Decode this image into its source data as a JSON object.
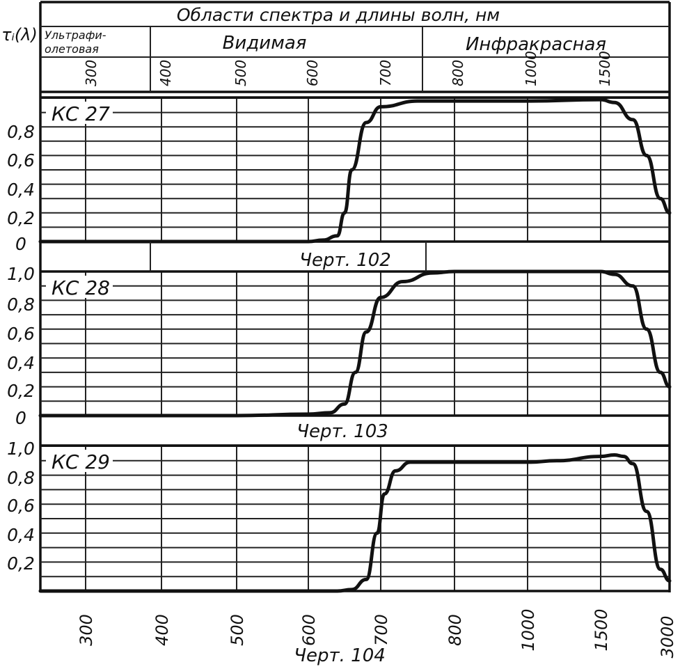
{
  "header": {
    "title": "Области спектра и длины волн,  нм",
    "y_symbol": "τᵢ(λ)",
    "regions": [
      {
        "name": "Ультрафи-",
        "name2": "олетовая"
      },
      {
        "name": "Видимая"
      },
      {
        "name": "Инфракрасная"
      }
    ],
    "tick_labels": [
      "300",
      "400",
      "500",
      "600",
      "700",
      "800",
      "1000",
      "1500"
    ]
  },
  "captions": [
    "Черт. 102",
    "Черт. 103",
    "Черт. 104"
  ],
  "x_tick_labels": [
    "300",
    "400",
    "500",
    "600",
    "700",
    "800",
    "1000",
    "1500",
    "3000"
  ],
  "chart_data": [
    {
      "type": "line",
      "title": "КС 27",
      "caption": "Черт. 102",
      "x_categories": [
        "300",
        "400",
        "500",
        "600",
        "700",
        "800",
        "1000",
        "1500",
        "3000"
      ],
      "yticks": [
        "0",
        "0,2",
        "0,4",
        "0,6",
        "0,8"
      ],
      "ylim": [
        0,
        1.0
      ],
      "series": [
        {
          "x": [
            250,
            300,
            400,
            500,
            600,
            620,
            640,
            650,
            660,
            680,
            700,
            750,
            800,
            1000,
            1500,
            1800,
            2200,
            2500,
            2800,
            3000
          ],
          "y": [
            0.0,
            0.0,
            0.0,
            0.0,
            0.0,
            0.01,
            0.04,
            0.2,
            0.5,
            0.83,
            0.94,
            0.98,
            0.98,
            0.98,
            0.99,
            0.97,
            0.85,
            0.6,
            0.3,
            0.2
          ]
        }
      ]
    },
    {
      "type": "line",
      "title": "КС 28",
      "caption": "Черт. 103",
      "x_categories": [
        "300",
        "400",
        "500",
        "600",
        "700",
        "800",
        "1000",
        "1500",
        "3000"
      ],
      "yticks": [
        "0",
        "0,2",
        "0,4",
        "0,6",
        "0,8",
        "1,0"
      ],
      "ylim": [
        0,
        1.0
      ],
      "series": [
        {
          "x": [
            250,
            300,
            400,
            500,
            600,
            630,
            650,
            665,
            680,
            700,
            730,
            770,
            800,
            1000,
            1500,
            1800,
            2200,
            2500,
            2800,
            3000
          ],
          "y": [
            0.0,
            0.0,
            0.0,
            0.0,
            0.01,
            0.02,
            0.08,
            0.3,
            0.58,
            0.82,
            0.93,
            0.99,
            1.0,
            1.0,
            1.0,
            0.98,
            0.9,
            0.6,
            0.3,
            0.2
          ]
        }
      ]
    },
    {
      "type": "line",
      "title": "КС 29",
      "caption": "Черт. 104",
      "x_categories": [
        "300",
        "400",
        "500",
        "600",
        "700",
        "800",
        "1000",
        "1500",
        "3000"
      ],
      "yticks": [
        "0,2",
        "0,4",
        "0,6",
        "0,8",
        "1,0"
      ],
      "ylim": [
        0,
        1.0
      ],
      "series": [
        {
          "x": [
            250,
            300,
            400,
            500,
            600,
            640,
            660,
            680,
            695,
            705,
            720,
            740,
            800,
            1000,
            1200,
            1500,
            1800,
            2000,
            2200,
            2500,
            2800,
            3000
          ],
          "y": [
            0.0,
            0.0,
            0.0,
            0.0,
            0.0,
            0.0,
            0.01,
            0.08,
            0.4,
            0.67,
            0.83,
            0.89,
            0.89,
            0.89,
            0.9,
            0.93,
            0.94,
            0.93,
            0.88,
            0.55,
            0.15,
            0.07
          ]
        }
      ]
    }
  ]
}
